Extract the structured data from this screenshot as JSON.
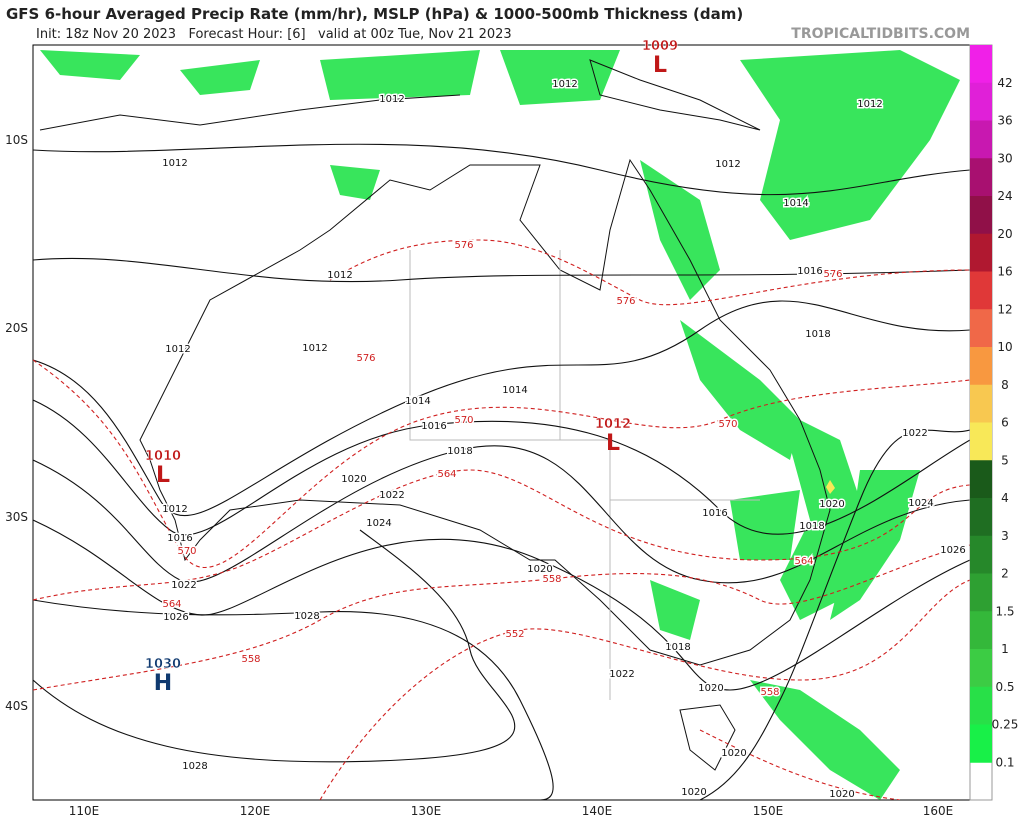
{
  "header": {
    "title": "GFS 6-hour Averaged Precip Rate (mm/hr), MSLP (hPa) & 1000-500mb Thickness (dam)",
    "init": "Init: 18z Nov 20 2023   Forecast Hour: [6]   valid at 00z Tue, Nov 21 2023",
    "source": "TROPICALTIDBITS.COM"
  },
  "map": {
    "lat_labels": [
      "10S",
      "20S",
      "30S",
      "40S"
    ],
    "lon_labels": [
      "110E",
      "120E",
      "130E",
      "140E",
      "150E",
      "160E"
    ],
    "pressure_centers": [
      {
        "letter": "L",
        "value": "1009"
      },
      {
        "letter": "L",
        "value": "1012"
      },
      {
        "letter": "L",
        "value": "1010"
      },
      {
        "letter": "H",
        "value": "1030"
      }
    ],
    "isobar_labels": [
      "1012",
      "1012",
      "1012",
      "1012",
      "1012",
      "1012",
      "1012",
      "1012",
      "1012",
      "1014",
      "1016",
      "1018",
      "1014",
      "1014",
      "1016",
      "1018",
      "1020",
      "1022",
      "1024",
      "1016",
      "1022",
      "1026",
      "1028",
      "1016",
      "1020",
      "1018",
      "1022",
      "1020",
      "1020",
      "1020",
      "1020",
      "1028",
      "1018",
      "1020",
      "1022",
      "1024",
      "1026"
    ],
    "thickness_labels": [
      "576",
      "576",
      "576",
      "576",
      "570",
      "570",
      "570",
      "564",
      "564",
      "564",
      "558",
      "558",
      "558",
      "552"
    ]
  },
  "colorbar": {
    "levels": [
      {
        "label": "42",
        "color": "#f020e8"
      },
      {
        "label": "36",
        "color": "#e020d8"
      },
      {
        "label": "30",
        "color": "#c818b0"
      },
      {
        "label": "24",
        "color": "#a81070"
      },
      {
        "label": "20",
        "color": "#901048"
      },
      {
        "label": "16",
        "color": "#b01830"
      },
      {
        "label": "12",
        "color": "#e03838"
      },
      {
        "label": "10",
        "color": "#f06848"
      },
      {
        "label": "8",
        "color": "#f89840"
      },
      {
        "label": "6",
        "color": "#f8c850"
      },
      {
        "label": "5",
        "color": "#f8e858"
      },
      {
        "label": "4",
        "color": "#1a5a1a"
      },
      {
        "label": "3",
        "color": "#1f6e22"
      },
      {
        "label": "2",
        "color": "#26882a"
      },
      {
        "label": "1.5",
        "color": "#2ea032"
      },
      {
        "label": "1",
        "color": "#34b83a"
      },
      {
        "label": "0.5",
        "color": "#3ccc44"
      },
      {
        "label": "0.25",
        "color": "#28e048"
      },
      {
        "label": "0.1",
        "color": "#18f048"
      }
    ]
  }
}
